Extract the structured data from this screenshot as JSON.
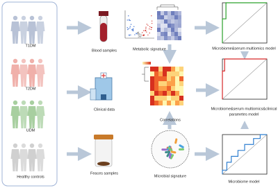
{
  "groups": [
    {
      "label": "T1DM"
    },
    {
      "label": "T2DM"
    },
    {
      "label": "UDM"
    },
    {
      "label": "Healthy controls"
    }
  ],
  "nodes": {
    "blood": {
      "label": "Blood samples"
    },
    "metabolic": {
      "label": "Metabolic signature"
    },
    "serum_model": {
      "label": "Microbiome&serum multiomics model"
    },
    "clinical": {
      "label": "Clinical data"
    },
    "correlations": {
      "label": "Correlations"
    },
    "clinical_model": {
      "lines": [
        "Microbiome&serum multiomics&clinical",
        "parametes model"
      ]
    },
    "feces": {
      "label": "Feaces samples"
    },
    "microbial": {
      "label": "Microbial signature"
    },
    "microbiome_model": {
      "label": "Microbiome model"
    }
  }
}
